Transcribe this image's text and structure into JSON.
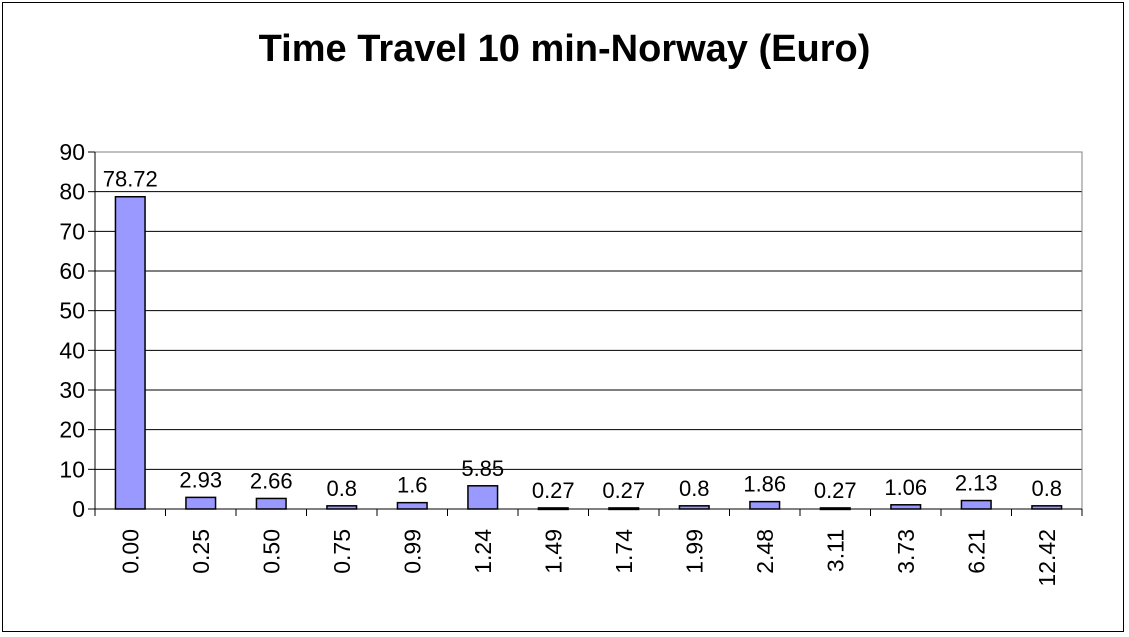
{
  "chart_data": {
    "type": "bar",
    "title": "Time Travel 10 min-Norway (Euro)",
    "xlabel": "",
    "ylabel": "",
    "categories": [
      "0.00",
      "0.25",
      "0.50",
      "0.75",
      "0.99",
      "1.24",
      "1.49",
      "1.74",
      "1.99",
      "2.48",
      "3.11",
      "3.73",
      "6.21",
      "12.42"
    ],
    "values": [
      78.72,
      2.93,
      2.66,
      0.8,
      1.6,
      5.85,
      0.27,
      0.27,
      0.8,
      1.86,
      0.27,
      1.06,
      2.13,
      0.8
    ],
    "data_labels": [
      "78.72",
      "2.93",
      "2.66",
      "0.8",
      "1.6",
      "5.85",
      "0.27",
      "0.27",
      "0.8",
      "1.86",
      "0.27",
      "1.06",
      "2.13",
      "0.8"
    ],
    "ylim": [
      0,
      90
    ],
    "yticks": [
      0,
      10,
      20,
      30,
      40,
      50,
      60,
      70,
      80,
      90
    ],
    "grid": true,
    "legend": "none",
    "bar_color": "#9999ff",
    "bar_stroke": "#000000",
    "plot_border": "#808080"
  }
}
